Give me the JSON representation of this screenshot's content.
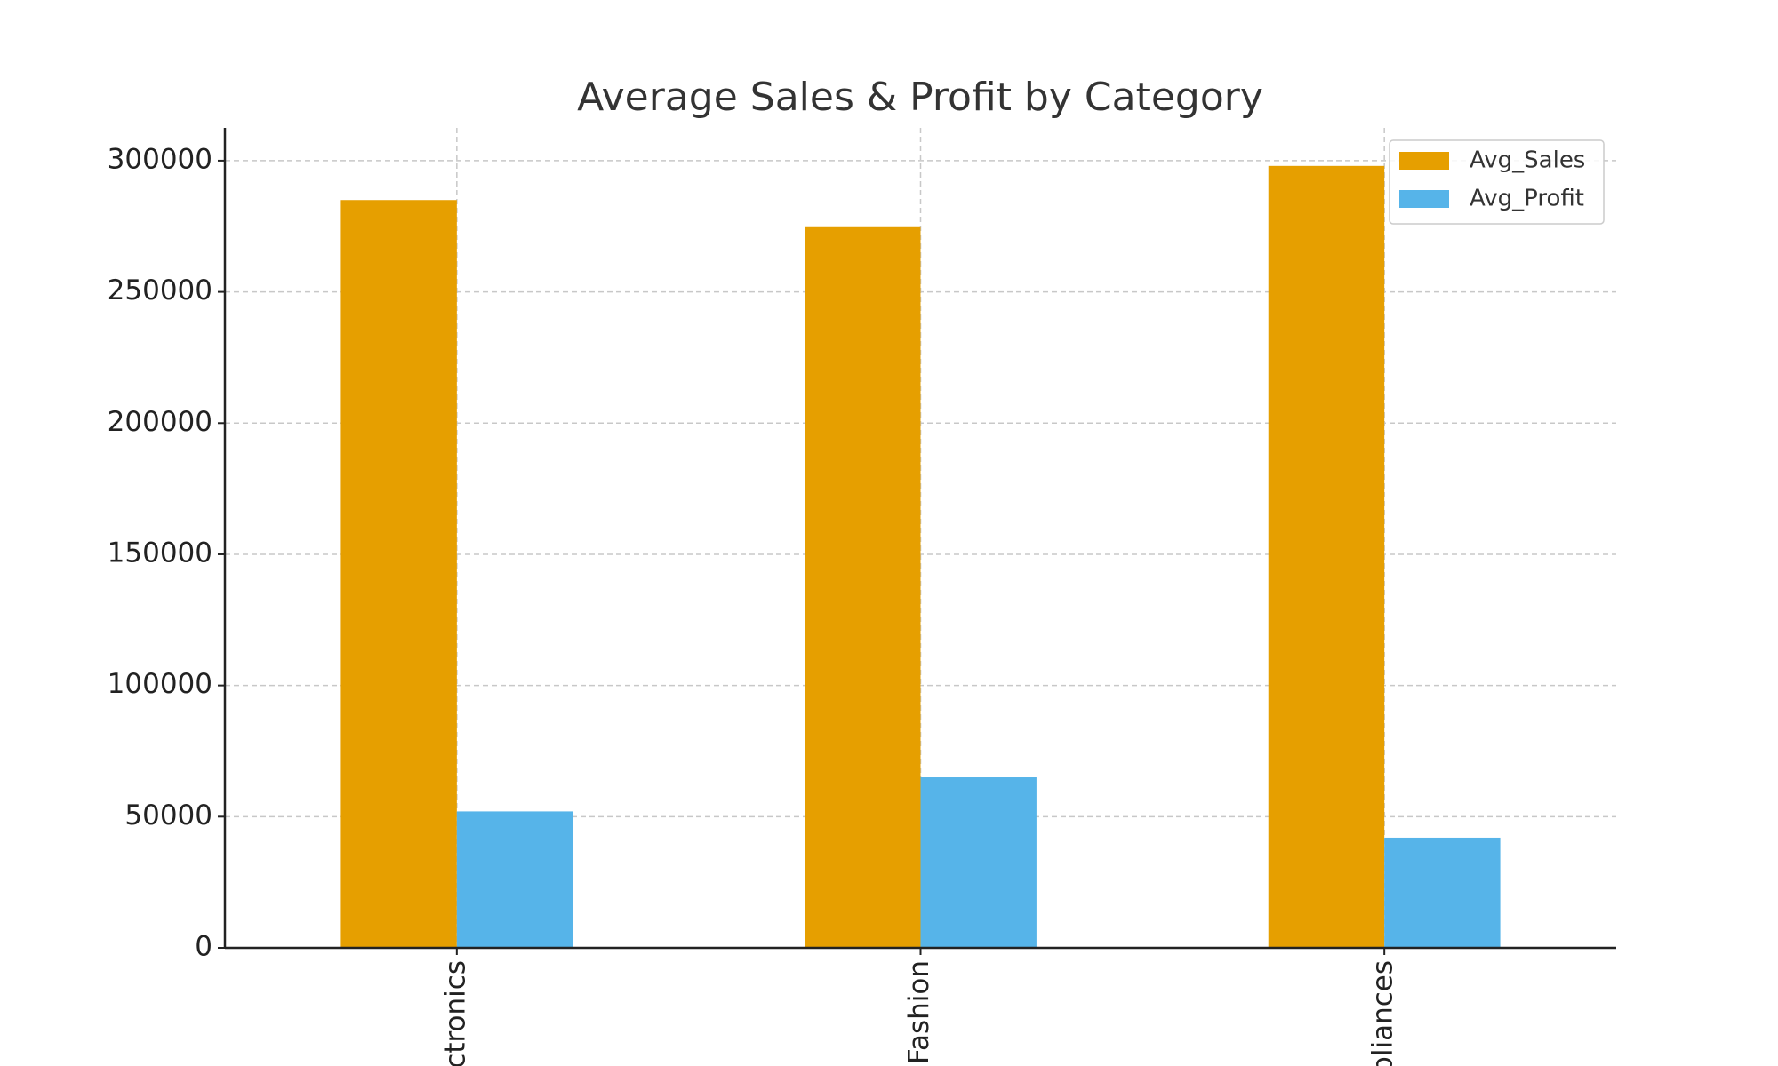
{
  "chart_data": {
    "type": "bar",
    "title": "Average Sales & Profit by Category",
    "categories": [
      "Electronics",
      "Fashion",
      "Appliances"
    ],
    "series": [
      {
        "name": "Avg_Sales",
        "color": "#E69F00",
        "values": [
          285000,
          275000,
          298000
        ]
      },
      {
        "name": "Avg_Profit",
        "color": "#56B4E9",
        "values": [
          52000,
          65000,
          42000
        ]
      }
    ],
    "ylim": [
      0,
      312500
    ],
    "yticks": [
      0,
      50000,
      100000,
      150000,
      200000,
      250000,
      300000
    ],
    "grid": true,
    "legend": "upper right"
  }
}
